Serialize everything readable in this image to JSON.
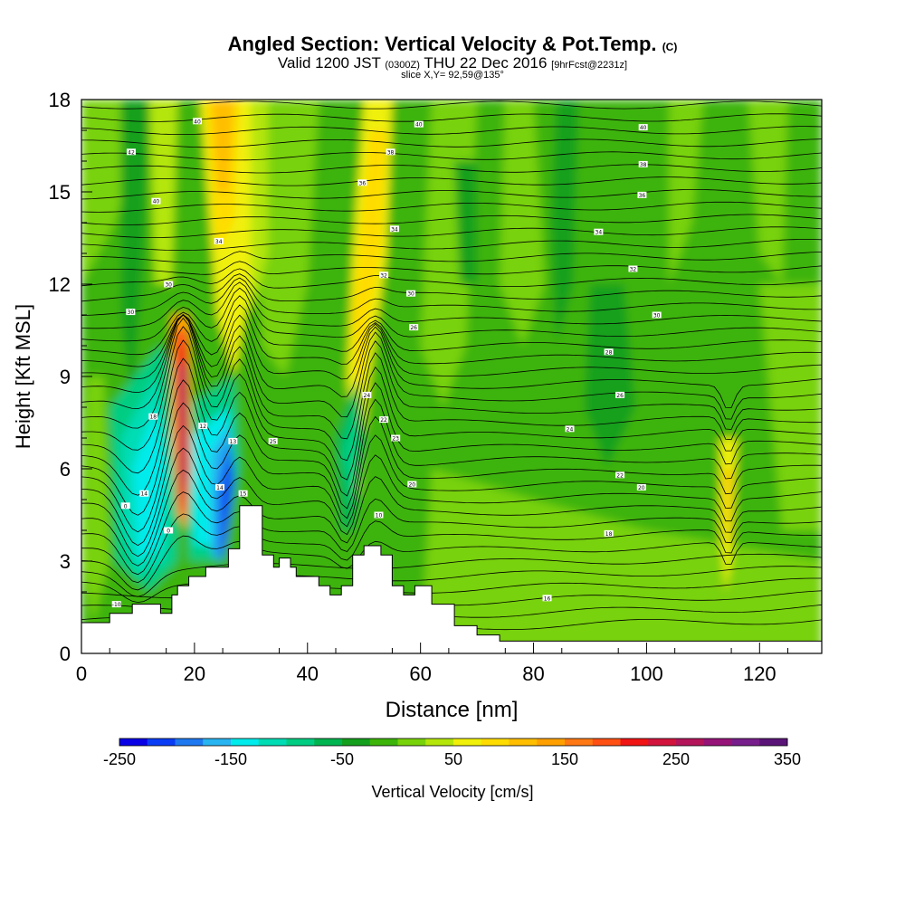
{
  "header": {
    "title": "Angled Section: Vertical Velocity & Pot.Temp.",
    "title_unit": "(C)",
    "valid_prefix": "Valid 1200 JST",
    "valid_utc": "(0300Z)",
    "valid_date": "THU 22 Dec 2016",
    "forecast": "[9hrFcst@2231z]",
    "slice": "slice X,Y= 92,59@135°"
  },
  "chart_data": {
    "type": "heatmap",
    "xlabel": "Distance [nm]",
    "ylabel": "Height [Kft MSL]",
    "xlim": [
      0,
      131
    ],
    "ylim": [
      0,
      18
    ],
    "x_ticks": [
      0,
      20,
      40,
      60,
      80,
      100,
      120
    ],
    "y_ticks": [
      0,
      3,
      6,
      9,
      12,
      15,
      18
    ],
    "colorbar": {
      "label": "Vertical Velocity [cm/s]",
      "tick_labels": [
        "-250",
        "-150",
        "-50",
        "50",
        "150",
        "250",
        "350"
      ],
      "colors": [
        "#0a00e6",
        "#0a3cf5",
        "#1e78f0",
        "#28b4f0",
        "#00ebeb",
        "#00dcb4",
        "#00cd82",
        "#00b450",
        "#14a01e",
        "#3cb40a",
        "#78d20a",
        "#b4e60a",
        "#f0f00a",
        "#ffdc00",
        "#ffbe00",
        "#ffa000",
        "#ff7814",
        "#ff5014",
        "#f01414",
        "#d2143c",
        "#b4145a",
        "#961478",
        "#781e8c",
        "#5a1478"
      ]
    },
    "terrain": [
      [
        0,
        1.0
      ],
      [
        5,
        1.0
      ],
      [
        5,
        1.3
      ],
      [
        9,
        1.3
      ],
      [
        9,
        1.6
      ],
      [
        14,
        1.6
      ],
      [
        14,
        1.3
      ],
      [
        16,
        1.3
      ],
      [
        16,
        1.9
      ],
      [
        17,
        1.9
      ],
      [
        17,
        2.2
      ],
      [
        19,
        2.2
      ],
      [
        19,
        2.5
      ],
      [
        22,
        2.5
      ],
      [
        22,
        2.8
      ],
      [
        26,
        2.8
      ],
      [
        26,
        3.4
      ],
      [
        28,
        3.4
      ],
      [
        28,
        4.8
      ],
      [
        32,
        4.8
      ],
      [
        32,
        3.2
      ],
      [
        34,
        3.2
      ],
      [
        34,
        2.8
      ],
      [
        35,
        2.8
      ],
      [
        35,
        3.1
      ],
      [
        37,
        3.1
      ],
      [
        37,
        2.8
      ],
      [
        38,
        2.8
      ],
      [
        38,
        2.5
      ],
      [
        42,
        2.5
      ],
      [
        42,
        2.2
      ],
      [
        44,
        2.2
      ],
      [
        44,
        1.9
      ],
      [
        46,
        1.9
      ],
      [
        46,
        2.2
      ],
      [
        48,
        2.2
      ],
      [
        48,
        3.2
      ],
      [
        50,
        3.2
      ],
      [
        50,
        3.5
      ],
      [
        53,
        3.5
      ],
      [
        53,
        3.2
      ],
      [
        55,
        3.2
      ],
      [
        55,
        2.2
      ],
      [
        57,
        2.2
      ],
      [
        57,
        1.9
      ],
      [
        59,
        1.9
      ],
      [
        59,
        2.2
      ],
      [
        62,
        2.2
      ],
      [
        62,
        1.6
      ],
      [
        66,
        1.6
      ],
      [
        66,
        0.9
      ],
      [
        70,
        0.9
      ],
      [
        70,
        0.6
      ],
      [
        74,
        0.6
      ],
      [
        74,
        0.4
      ],
      [
        131,
        0.4
      ]
    ],
    "isotherm_labels": [
      {
        "text": "40",
        "x": 20.5,
        "y": 17.3
      },
      {
        "text": "42",
        "x": 8.8,
        "y": 16.3
      },
      {
        "text": "40",
        "x": 13.2,
        "y": 14.7
      },
      {
        "text": "34",
        "x": 24.3,
        "y": 13.4
      },
      {
        "text": "30",
        "x": 15.4,
        "y": 12.0
      },
      {
        "text": "30",
        "x": 8.7,
        "y": 11.1
      },
      {
        "text": "18",
        "x": 12.7,
        "y": 7.7
      },
      {
        "text": "12",
        "x": 21.5,
        "y": 7.4
      },
      {
        "text": "14",
        "x": 11.1,
        "y": 5.2
      },
      {
        "text": "14",
        "x": 24.5,
        "y": 5.4
      },
      {
        "text": "0",
        "x": 7.8,
        "y": 4.8
      },
      {
        "text": "0",
        "x": 15.4,
        "y": 4.0
      },
      {
        "text": "13",
        "x": 26.8,
        "y": 6.9
      },
      {
        "text": "25",
        "x": 33.9,
        "y": 6.9
      },
      {
        "text": "15",
        "x": 28.6,
        "y": 5.2
      },
      {
        "text": "-10",
        "x": 6.2,
        "y": 1.6
      },
      {
        "text": "40",
        "x": 59.7,
        "y": 17.2
      },
      {
        "text": "38",
        "x": 54.7,
        "y": 16.3
      },
      {
        "text": "36",
        "x": 49.7,
        "y": 15.3
      },
      {
        "text": "34",
        "x": 55.4,
        "y": 13.8
      },
      {
        "text": "32",
        "x": 53.5,
        "y": 12.3
      },
      {
        "text": "30",
        "x": 58.3,
        "y": 11.7
      },
      {
        "text": "26",
        "x": 58.8,
        "y": 10.6
      },
      {
        "text": "24",
        "x": 50.5,
        "y": 8.4
      },
      {
        "text": "22",
        "x": 53.5,
        "y": 7.6
      },
      {
        "text": "23",
        "x": 55.6,
        "y": 7.0
      },
      {
        "text": "20",
        "x": 58.5,
        "y": 5.5
      },
      {
        "text": "10",
        "x": 52.6,
        "y": 4.5
      },
      {
        "text": "40",
        "x": 99.4,
        "y": 17.1
      },
      {
        "text": "38",
        "x": 99.4,
        "y": 15.9
      },
      {
        "text": "36",
        "x": 99.2,
        "y": 14.9
      },
      {
        "text": "34",
        "x": 91.5,
        "y": 13.7
      },
      {
        "text": "32",
        "x": 97.6,
        "y": 12.5
      },
      {
        "text": "30",
        "x": 101.8,
        "y": 11.0
      },
      {
        "text": "28",
        "x": 93.3,
        "y": 9.8
      },
      {
        "text": "26",
        "x": 95.3,
        "y": 8.4
      },
      {
        "text": "24",
        "x": 86.4,
        "y": 7.3
      },
      {
        "text": "22",
        "x": 95.3,
        "y": 5.8
      },
      {
        "text": "20",
        "x": 99.1,
        "y": 5.4
      },
      {
        "text": "18",
        "x": 93.3,
        "y": 3.9
      },
      {
        "text": "16",
        "x": 82.4,
        "y": 1.8
      }
    ]
  }
}
